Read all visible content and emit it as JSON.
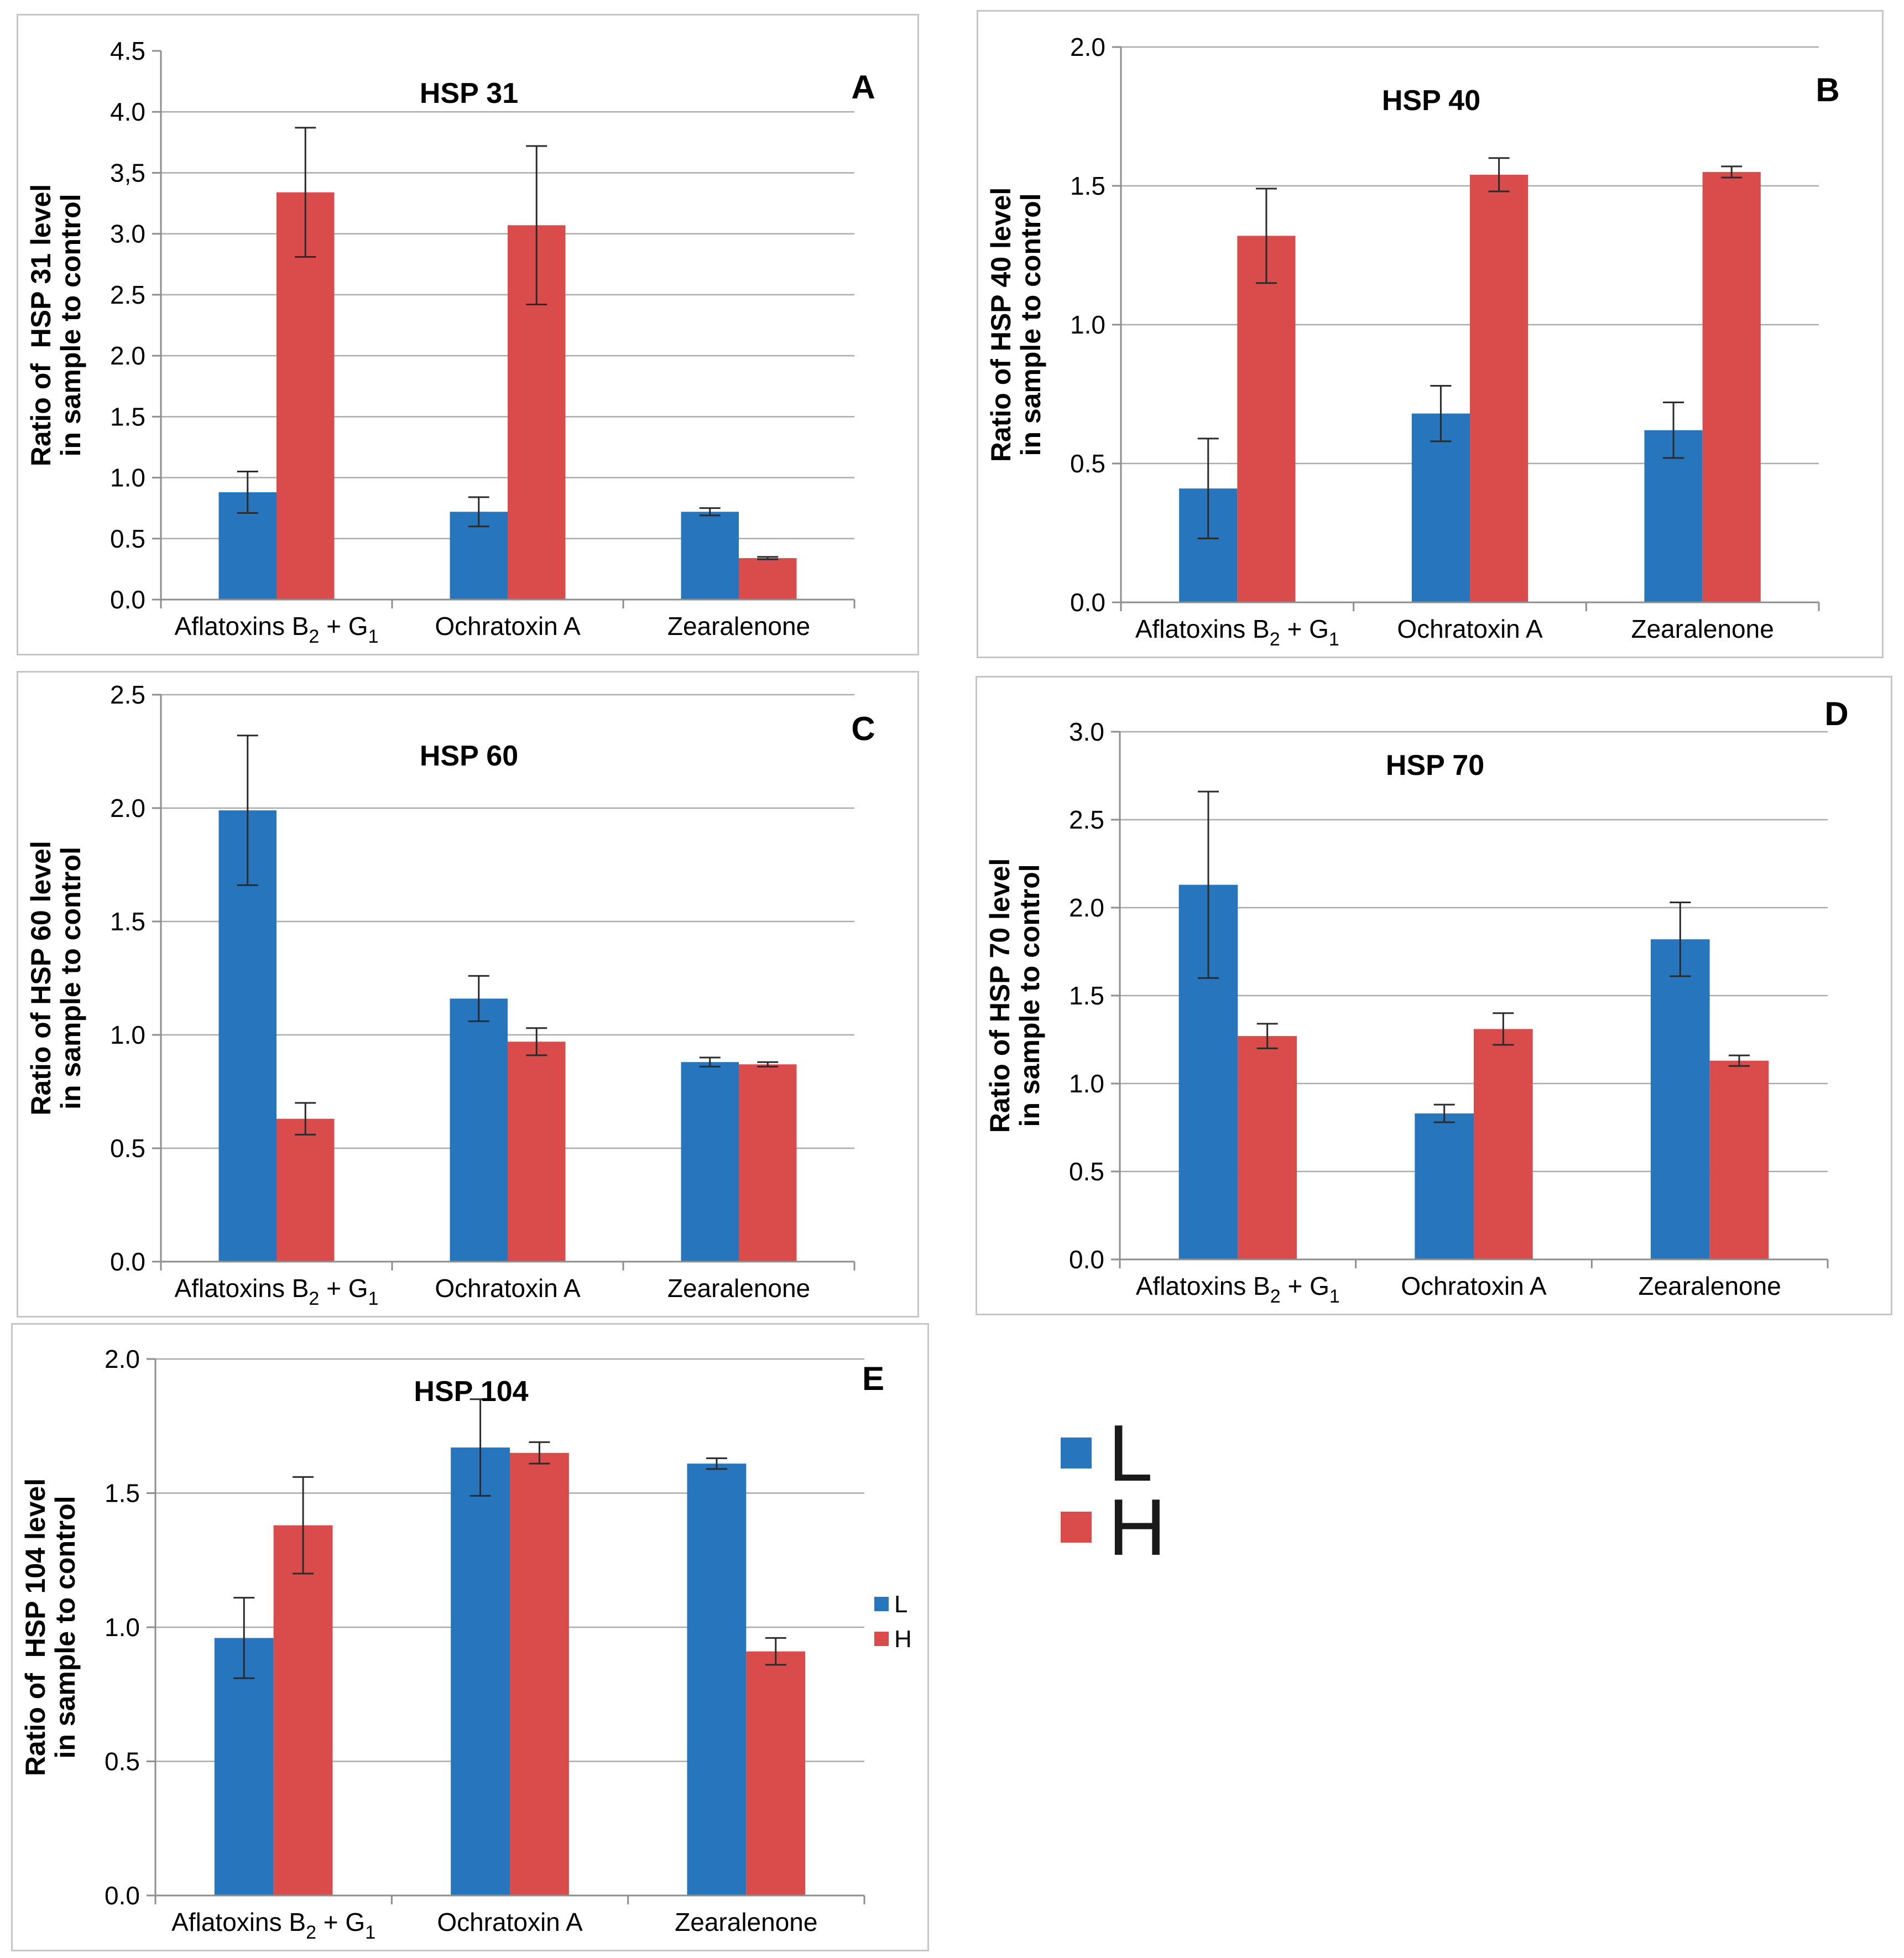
{
  "figure": {
    "background_color": "#ffffff",
    "series_colors": {
      "L": "#2775BC",
      "H": "#DA4B4C"
    },
    "grid_color": "#ABABAB",
    "axis_color": "#8E8E8E",
    "error_bar_color": "#2B2B2B",
    "text_color": "#000000",
    "legend": {
      "position": "bottom-right-of-figure",
      "items": [
        {
          "label": "L",
          "color_key": "L"
        },
        {
          "label": "H",
          "color_key": "H"
        }
      ]
    },
    "categories": [
      {
        "parts": [
          {
            "text": "Aflatoxins B"
          },
          {
            "sub": "2"
          },
          {
            "text": " + G"
          },
          {
            "sub": "1"
          }
        ]
      },
      {
        "parts": [
          {
            "text": "Ochratoxin A"
          }
        ]
      },
      {
        "parts": [
          {
            "text": "Zearalenone"
          }
        ]
      }
    ]
  },
  "chart_data": [
    {
      "type": "bar",
      "panel_letter": "A",
      "title": "HSP 31",
      "ylabel": [
        "Ratio of  HSP 31 level",
        "in sample to control"
      ],
      "xlabel": "",
      "categories": [
        "Aflatoxins B2 + G1",
        "Ochratoxin A",
        "Zearalenone"
      ],
      "ylim": [
        0,
        4.5
      ],
      "grid": true,
      "yticks": [
        {
          "value": 4.5,
          "label": "4.5",
          "gridline": false
        },
        {
          "value": 4.0,
          "label": "4.0",
          "gridline": true
        },
        {
          "value": 3.5,
          "label": "3,5",
          "gridline": true
        },
        {
          "value": 3.0,
          "label": "3.0",
          "gridline": true
        },
        {
          "value": 2.5,
          "label": "2.5",
          "gridline": true
        },
        {
          "value": 2.0,
          "label": "2.0",
          "gridline": true
        },
        {
          "value": 1.5,
          "label": "1.5",
          "gridline": true
        },
        {
          "value": 1.0,
          "label": "1.0",
          "gridline": true
        },
        {
          "value": 0.5,
          "label": "0.5",
          "gridline": true
        },
        {
          "value": 0.0,
          "label": "0.0",
          "gridline": false
        }
      ],
      "series": [
        {
          "name": "L",
          "values": [
            0.88,
            0.72,
            0.72
          ],
          "errors": [
            0.17,
            0.12,
            0.03
          ]
        },
        {
          "name": "H",
          "values": [
            3.34,
            3.07,
            0.34
          ],
          "errors": [
            0.53,
            0.65,
            0.01
          ]
        }
      ],
      "inner_legend": false
    },
    {
      "type": "bar",
      "panel_letter": "B",
      "title": "HSP 40",
      "ylabel": [
        "Ratio of HSP 40 level",
        "in sample to control"
      ],
      "xlabel": "",
      "categories": [
        "Aflatoxins B2 + G1",
        "Ochratoxin A",
        "Zearalenone"
      ],
      "ylim": [
        0,
        2.0
      ],
      "grid": true,
      "yticks": [
        {
          "value": 2.0,
          "label": "2.0",
          "gridline": true
        },
        {
          "value": 1.5,
          "label": "1.5",
          "gridline": true
        },
        {
          "value": 1.0,
          "label": "1.0",
          "gridline": true
        },
        {
          "value": 0.5,
          "label": "0.5",
          "gridline": true
        },
        {
          "value": 0.0,
          "label": "0.0",
          "gridline": false
        }
      ],
      "series": [
        {
          "name": "L",
          "values": [
            0.41,
            0.68,
            0.62
          ],
          "errors": [
            0.18,
            0.1,
            0.1
          ]
        },
        {
          "name": "H",
          "values": [
            1.32,
            1.54,
            1.55
          ],
          "errors": [
            0.17,
            0.06,
            0.02
          ]
        }
      ],
      "inner_legend": false
    },
    {
      "type": "bar",
      "panel_letter": "C",
      "title": "HSP 60",
      "ylabel": [
        "Ratio of HSP 60 level",
        "in sample to control"
      ],
      "xlabel": "",
      "categories": [
        "Aflatoxins B2 + G1",
        "Ochratoxin A",
        "Zearalenone"
      ],
      "ylim": [
        0,
        2.5
      ],
      "grid": true,
      "yticks": [
        {
          "value": 2.5,
          "label": "2.5",
          "gridline": true
        },
        {
          "value": 2.0,
          "label": "2.0",
          "gridline": true
        },
        {
          "value": 1.5,
          "label": "1.5",
          "gridline": true
        },
        {
          "value": 1.0,
          "label": "1.0",
          "gridline": true
        },
        {
          "value": 0.5,
          "label": "0.5",
          "gridline": true
        },
        {
          "value": 0.0,
          "label": "0.0",
          "gridline": false
        }
      ],
      "series": [
        {
          "name": "L",
          "values": [
            1.99,
            1.16,
            0.88
          ],
          "errors": [
            0.33,
            0.1,
            0.02
          ]
        },
        {
          "name": "H",
          "values": [
            0.63,
            0.97,
            0.87
          ],
          "errors": [
            0.07,
            0.06,
            0.01
          ]
        }
      ],
      "inner_legend": false
    },
    {
      "type": "bar",
      "panel_letter": "D",
      "title": "HSP 70",
      "ylabel": [
        "Ratio of HSP 70 level",
        "in sample to control"
      ],
      "xlabel": "",
      "categories": [
        "Aflatoxins B2 + G1",
        "Ochratoxin A",
        "Zearalenone"
      ],
      "ylim": [
        0,
        3.0
      ],
      "grid": true,
      "yticks": [
        {
          "value": 3.0,
          "label": "3.0",
          "gridline": true
        },
        {
          "value": 2.5,
          "label": "2.5",
          "gridline": true
        },
        {
          "value": 2.0,
          "label": "2.0",
          "gridline": true
        },
        {
          "value": 1.5,
          "label": "1.5",
          "gridline": true
        },
        {
          "value": 1.0,
          "label": "1.0",
          "gridline": true
        },
        {
          "value": 0.5,
          "label": "0.5",
          "gridline": true
        },
        {
          "value": 0.0,
          "label": "0.0",
          "gridline": false
        }
      ],
      "series": [
        {
          "name": "L",
          "values": [
            2.13,
            0.83,
            1.82
          ],
          "errors": [
            0.53,
            0.05,
            0.21
          ]
        },
        {
          "name": "H",
          "values": [
            1.27,
            1.31,
            1.13
          ],
          "errors": [
            0.07,
            0.09,
            0.03
          ]
        }
      ],
      "inner_legend": false
    },
    {
      "type": "bar",
      "panel_letter": "E",
      "title": "HSP 104",
      "ylabel": [
        "Ratio of  HSP 104 level",
        "in sample to control"
      ],
      "xlabel": "",
      "categories": [
        "Aflatoxins B2 + G1",
        "Ochratoxin A",
        "Zearalenone"
      ],
      "ylim": [
        0,
        2.0
      ],
      "grid": true,
      "yticks": [
        {
          "value": 2.0,
          "label": "2.0",
          "gridline": true
        },
        {
          "value": 1.5,
          "label": "1.5",
          "gridline": true
        },
        {
          "value": 1.0,
          "label": "1.0",
          "gridline": true
        },
        {
          "value": 0.5,
          "label": "0.5",
          "gridline": true
        },
        {
          "value": 0.0,
          "label": "0.0",
          "gridline": false
        }
      ],
      "series": [
        {
          "name": "L",
          "values": [
            0.96,
            1.67,
            1.61
          ],
          "errors": [
            0.15,
            0.18,
            0.02
          ]
        },
        {
          "name": "H",
          "values": [
            1.38,
            1.65,
            0.91
          ],
          "errors": [
            0.18,
            0.04,
            0.05
          ]
        }
      ],
      "inner_legend": true,
      "inner_legend_labels": [
        "L",
        "H"
      ]
    }
  ]
}
